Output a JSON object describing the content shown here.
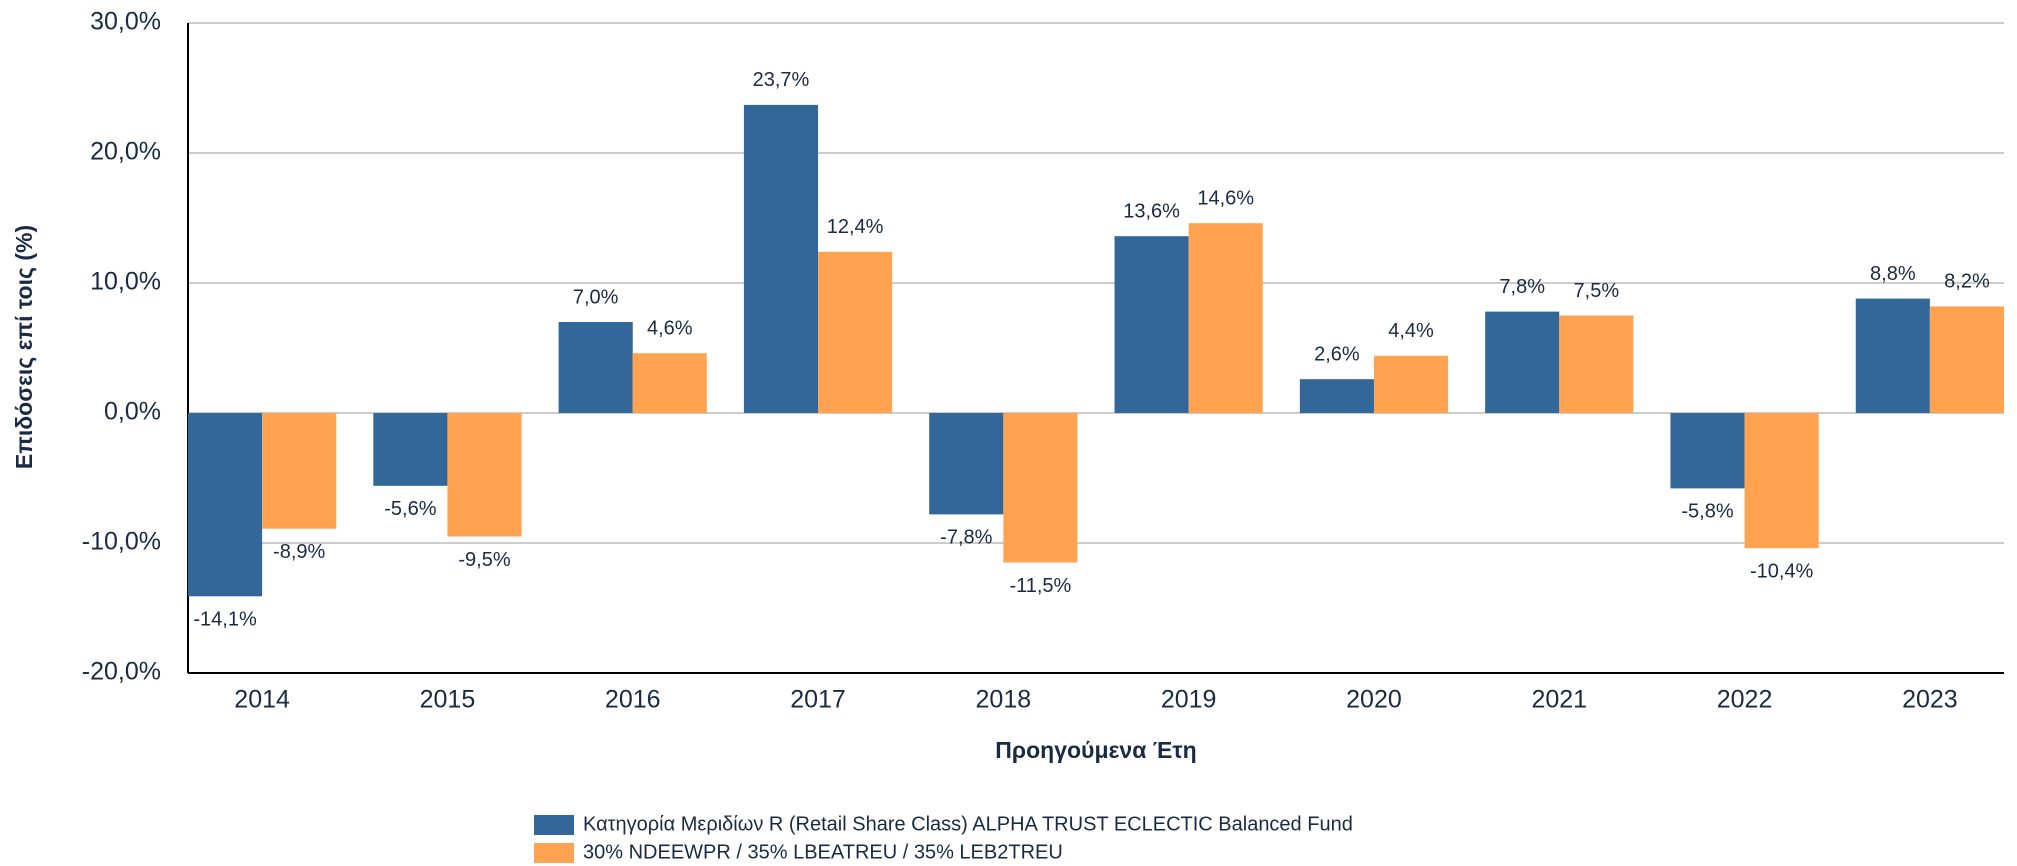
{
  "chart_data": {
    "type": "bar",
    "y_label": "Επιδόσεις επί τοις (%)",
    "x_label": "Προηγούμενα Έτη",
    "categories": [
      "2014",
      "2015",
      "2016",
      "2017",
      "2018",
      "2019",
      "2020",
      "2021",
      "2022",
      "2023"
    ],
    "series": [
      {
        "name": "Κατηγορία Μεριδίων R (Retail Share Class)  ALPHA TRUST ECLECTIC Balanced Fund",
        "color": "#336699",
        "values": [
          -14.1,
          -5.6,
          7.0,
          23.7,
          -7.8,
          13.6,
          2.6,
          7.8,
          -5.8,
          8.8
        ],
        "value_labels": [
          "-14,1%",
          "-5,6%",
          "7,0%",
          "23,7%",
          "-7,8%",
          "13,6%",
          "2,6%",
          "7,8%",
          "-5,8%",
          "8,8%"
        ]
      },
      {
        "name": "30% NDEEWPR / 35% LBEATREU / 35% LEB2TREU",
        "color": "#ffa351",
        "values": [
          -8.9,
          -9.5,
          4.6,
          12.4,
          -11.5,
          14.6,
          4.4,
          7.5,
          -10.4,
          8.2
        ],
        "value_labels": [
          "-8,9%",
          "-9,5%",
          "4,6%",
          "12,4%",
          "-11,5%",
          "14,6%",
          "4,4%",
          "7,5%",
          "-10,4%",
          "8,2%"
        ]
      }
    ],
    "ylim": [
      -20,
      30
    ],
    "yticks": [
      {
        "value": -20,
        "label": "-20,0%"
      },
      {
        "value": -10,
        "label": "-10,0%"
      },
      {
        "value": 0,
        "label": "0,0%"
      },
      {
        "value": 10,
        "label": "10,0%"
      },
      {
        "value": 20,
        "label": "20,0%"
      },
      {
        "value": 30,
        "label": "30,0%"
      }
    ],
    "grid": true
  }
}
